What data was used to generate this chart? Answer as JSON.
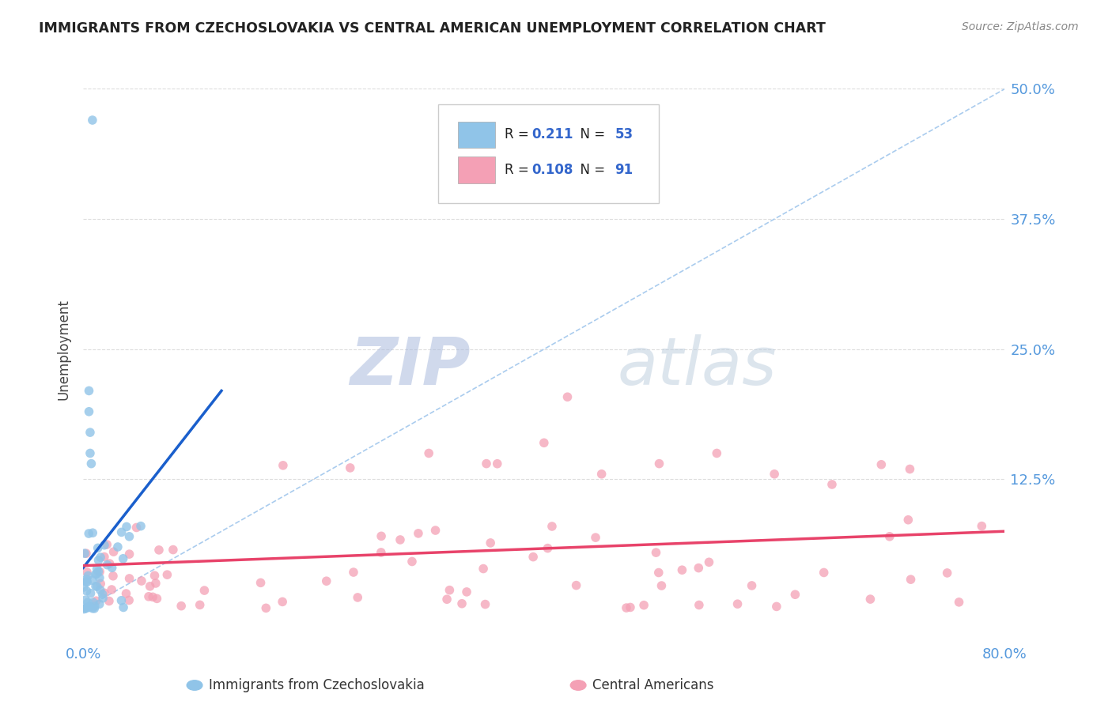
{
  "title": "IMMIGRANTS FROM CZECHOSLOVAKIA VS CENTRAL AMERICAN UNEMPLOYMENT CORRELATION CHART",
  "source": "Source: ZipAtlas.com",
  "ylabel": "Unemployment",
  "xlim": [
    0.0,
    0.8
  ],
  "ylim": [
    -0.03,
    0.53
  ],
  "yticks": [
    0.0,
    0.125,
    0.25,
    0.375,
    0.5
  ],
  "ytick_labels_right": [
    "",
    "12.5%",
    "25.0%",
    "37.5%",
    "50.0%"
  ],
  "xtick_labels": [
    "0.0%",
    "80.0%"
  ],
  "legend_R1": "0.211",
  "legend_N1": "53",
  "legend_R2": "0.108",
  "legend_N2": "91",
  "blue_color": "#90C4E8",
  "pink_color": "#F4A0B5",
  "trend_blue_color": "#1A5FCC",
  "trend_pink_color": "#E8436A",
  "diag_color": "#AACCEE",
  "tick_color": "#5599DD",
  "background_color": "#FFFFFF",
  "grid_color": "#DDDDDD",
  "title_color": "#222222",
  "source_color": "#888888",
  "legend_text_black": "#222222",
  "legend_text_blue": "#3366CC",
  "watermark_zip_color": "#AABBDD",
  "watermark_atlas_color": "#BBCCDD"
}
